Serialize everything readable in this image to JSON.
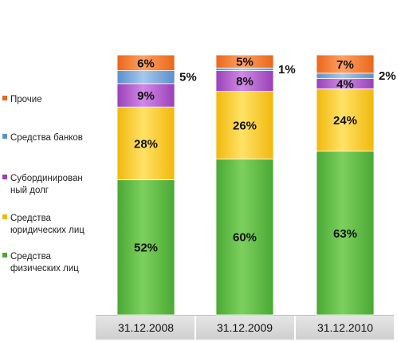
{
  "chart_data": {
    "type": "bar",
    "stacked": true,
    "categories": [
      "31.12.2008",
      "31.12.2009",
      "31.12.2010"
    ],
    "series": [
      {
        "name": "Средства физических лиц",
        "values": [
          52,
          60,
          63
        ],
        "labels": [
          "52%",
          "60%",
          "63%"
        ],
        "color": "#4aa834",
        "color_light": "#7dd05e",
        "label_position": "inside"
      },
      {
        "name": "Средства юридических лиц",
        "values": [
          28,
          26,
          24
        ],
        "labels": [
          "28%",
          "26%",
          "24%"
        ],
        "color": "#f1b80c",
        "color_light": "#ffe266",
        "label_position": "inside"
      },
      {
        "name": "Субординированный долг",
        "values": [
          9,
          8,
          4
        ],
        "labels": [
          "9%",
          "8%",
          "4%"
        ],
        "color": "#9a40b8",
        "color_light": "#d08ae6",
        "label_position": "inside"
      },
      {
        "name": "Средства банков",
        "values": [
          5,
          1,
          2
        ],
        "labels": [
          "5%",
          "1%",
          "2%"
        ],
        "color": "#5a8fcf",
        "color_light": "#a6c8ee",
        "label_position": "outside"
      },
      {
        "name": "Прочие",
        "values": [
          6,
          5,
          7
        ],
        "labels": [
          "6%",
          "5%",
          "7%"
        ],
        "color": "#e9671b",
        "color_light": "#ffa060",
        "label_position": "inside"
      }
    ],
    "legend": {
      "placement": "left",
      "order": [
        4,
        3,
        2,
        1,
        0
      ],
      "entries": [
        {
          "series": 4,
          "lines": [
            "Прочие"
          ]
        },
        {
          "series": 3,
          "lines": [
            "Средства банков"
          ]
        },
        {
          "series": 2,
          "lines": [
            "Субординирован",
            "ный долг"
          ]
        },
        {
          "series": 1,
          "lines": [
            "Средства",
            "юридических лиц"
          ]
        },
        {
          "series": 0,
          "lines": [
            "Средства",
            "физических лиц"
          ]
        }
      ]
    },
    "ylim": [
      0,
      100
    ],
    "grid": false,
    "title": "",
    "xlabel": "",
    "ylabel": ""
  }
}
